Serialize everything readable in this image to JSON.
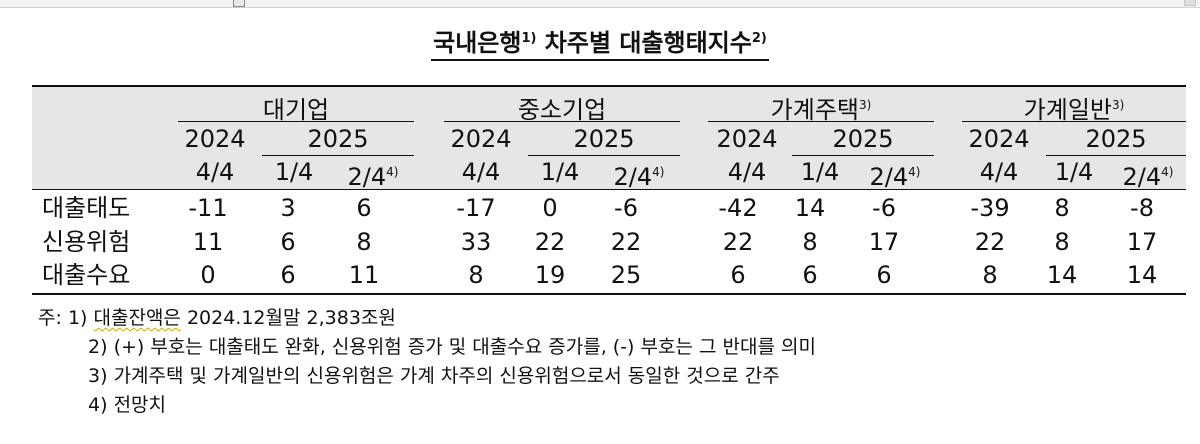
{
  "title": {
    "text": "국내은행",
    "sup1": "1)",
    "text2": " 차주별 대출행태지수",
    "sup2": "2)"
  },
  "groups": [
    {
      "label": "대기업",
      "sup": ""
    },
    {
      "label": "중소기업",
      "sup": ""
    },
    {
      "label": "가계주택",
      "sup": "3)"
    },
    {
      "label": "가계일반",
      "sup": "3)"
    }
  ],
  "years": {
    "y2024": "2024",
    "y2025": "2025"
  },
  "quarters": {
    "q1": "4/4",
    "q2": "1/4",
    "q3": "2/4",
    "q3_sup": "4)"
  },
  "rows": [
    {
      "label": "대출태도",
      "values": [
        "-11",
        "3",
        "6",
        "-17",
        "0",
        "-6",
        "-42",
        "14",
        "-6",
        "-39",
        "8",
        "-8"
      ]
    },
    {
      "label": "신용위험",
      "values": [
        "11",
        "6",
        "8",
        "33",
        "22",
        "22",
        "22",
        "8",
        "17",
        "22",
        "8",
        "17"
      ]
    },
    {
      "label": "대출수요",
      "values": [
        "0",
        "6",
        "11",
        "8",
        "19",
        "25",
        "6",
        "6",
        "6",
        "8",
        "14",
        "14"
      ]
    }
  ],
  "notes": {
    "prefix": "주:",
    "items": [
      {
        "num": "1)",
        "parts": [
          "대출잔액은",
          " 2024.12월말 2,383조원"
        ]
      },
      {
        "num": "2)",
        "text": "(+) 부호는 대출태도 완화, 신용위험 증가 및 대출수요 증가를, (-) 부호는 그 반대를 의미"
      },
      {
        "num": "3)",
        "text": "가계주택 및 가계일반의 신용위험은 가계 차주의 신용위험으로서 동일한 것으로 간주"
      },
      {
        "num": "4)",
        "text": "전망치"
      }
    ]
  }
}
